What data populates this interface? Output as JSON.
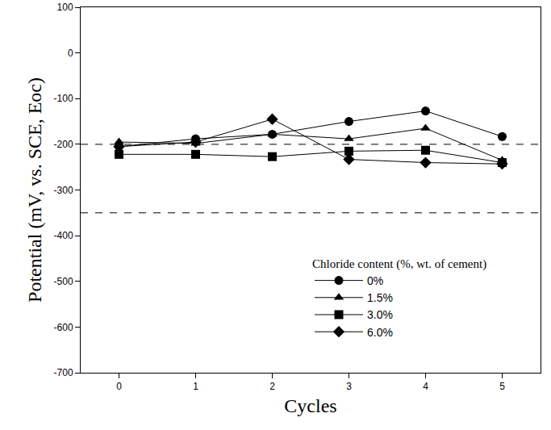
{
  "chart_data": {
    "type": "line",
    "x": [
      0,
      1,
      2,
      3,
      4,
      5
    ],
    "xlabel": "Cycles",
    "ylabel": "Potential (mV, vs. SCE, Eoc)",
    "xlim": [
      -0.5,
      5.5
    ],
    "xticks": [
      0,
      1,
      2,
      3,
      4,
      5
    ],
    "ylim": [
      -700,
      100
    ],
    "yticks": [
      -700,
      -600,
      -500,
      -400,
      -300,
      -200,
      -100,
      0,
      100
    ],
    "grid": false,
    "legend": "lower right",
    "legend_title": "Chloride content (%, wt. of cement)",
    "reference_lines": [
      -200,
      -350
    ],
    "series": [
      {
        "name": "0%",
        "color": "#000000",
        "marker": "circle",
        "values": [
          -205,
          -188,
          -178,
          -150,
          -127,
          -183
        ]
      },
      {
        "name": "1.5%",
        "color": "#000000",
        "marker": "triangle-up",
        "values": [
          -195,
          -198,
          -178,
          -188,
          -165,
          -235
        ]
      },
      {
        "name": "3.0%",
        "color": "#000000",
        "marker": "square",
        "values": [
          -222,
          -222,
          -227,
          -215,
          -213,
          -240
        ]
      },
      {
        "name": "6.0%",
        "color": "#000000",
        "marker": "diamond",
        "values": [
          -205,
          -195,
          -145,
          -233,
          -240,
          -243
        ]
      }
    ]
  }
}
